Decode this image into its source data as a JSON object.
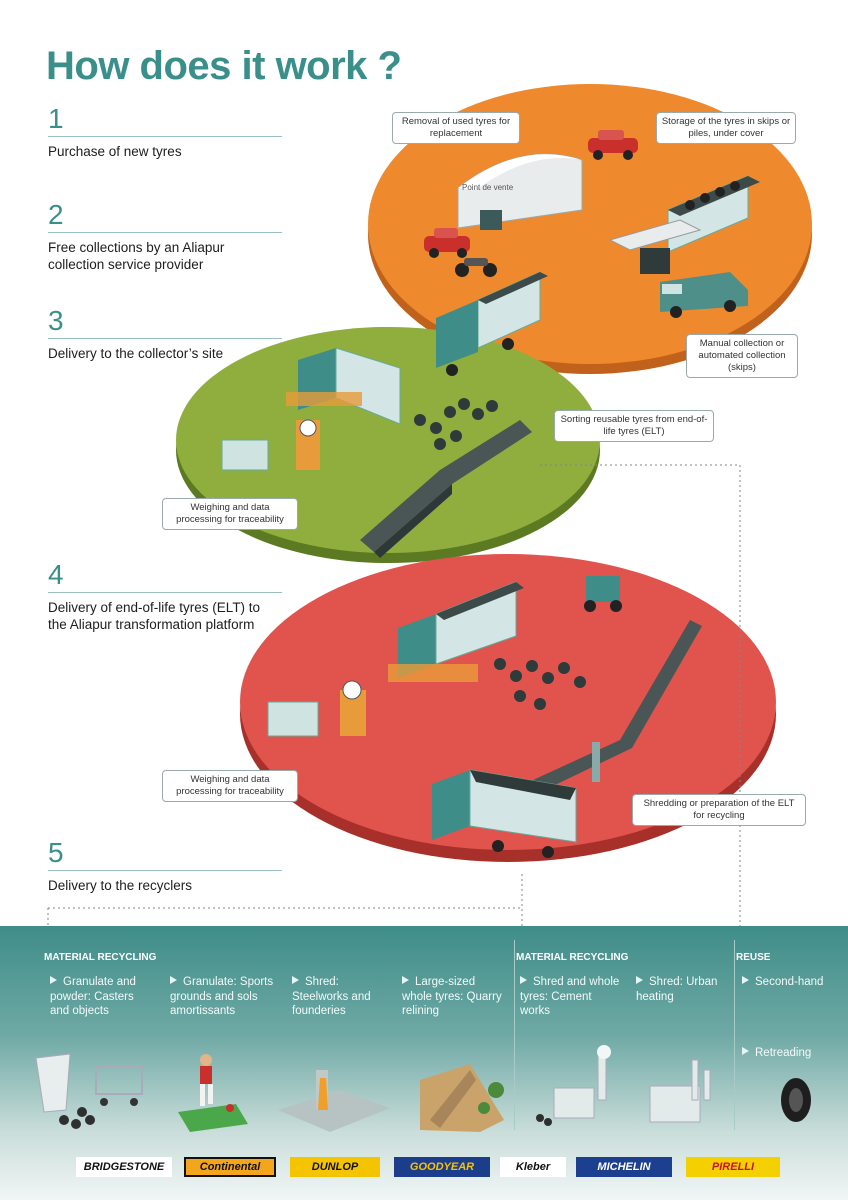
{
  "title": "How does it work ?",
  "steps": [
    {
      "num": "1",
      "text": "Purchase of new tyres"
    },
    {
      "num": "2",
      "text": "Free collections by an Aliapur collection service provider"
    },
    {
      "num": "3",
      "text": "Delivery to the collector’s site"
    },
    {
      "num": "4",
      "text": "Delivery of end-of-life tyres (ELT) to the Aliapur transformation platform"
    },
    {
      "num": "5",
      "text": "Delivery to the recyclers"
    }
  ],
  "callouts": {
    "removal": "Removal of used tyres for replacement",
    "storage": "Storage of the tyres in skips or piles, under cover",
    "manual": "Manual collection or automated collection (skips)",
    "sorting": "Sorting reusable tyres from end-of-life tyres (ELT)",
    "weigh1": "Weighing and data processing for traceability",
    "weigh2": "Weighing and data processing for traceability",
    "shredding": "Shredding or preparation of the ELT for recycling"
  },
  "shop_sign": "Point de vente",
  "sections": {
    "material1": "MATERIAL RECYCLING",
    "material2": "MATERIAL RECYCLING",
    "reuse": "REUSE"
  },
  "uses": [
    {
      "text": "Granulate and powder: Casters and objects"
    },
    {
      "text": "Granulate: Sports grounds and sols amortissants"
    },
    {
      "text": "Shred: Steelworks and founderies"
    },
    {
      "text": "Large-sized whole tyres: Quarry relining"
    },
    {
      "text": "Shred and whole tyres: Cement works"
    },
    {
      "text": "Shred: Urban heating"
    },
    {
      "text": "Second-hand"
    },
    {
      "text": "Retreading"
    }
  ],
  "brands": [
    "BRIDGESTONE",
    "Continental",
    "DUNLOP",
    "GOODYEAR",
    "Kleber",
    "MICHELIN",
    "PIRELLI"
  ],
  "colors": {
    "teal": "#3a8f8a",
    "orange_disc": "#e8822a",
    "green_disc": "#86a53a",
    "red_disc": "#d9504a"
  }
}
